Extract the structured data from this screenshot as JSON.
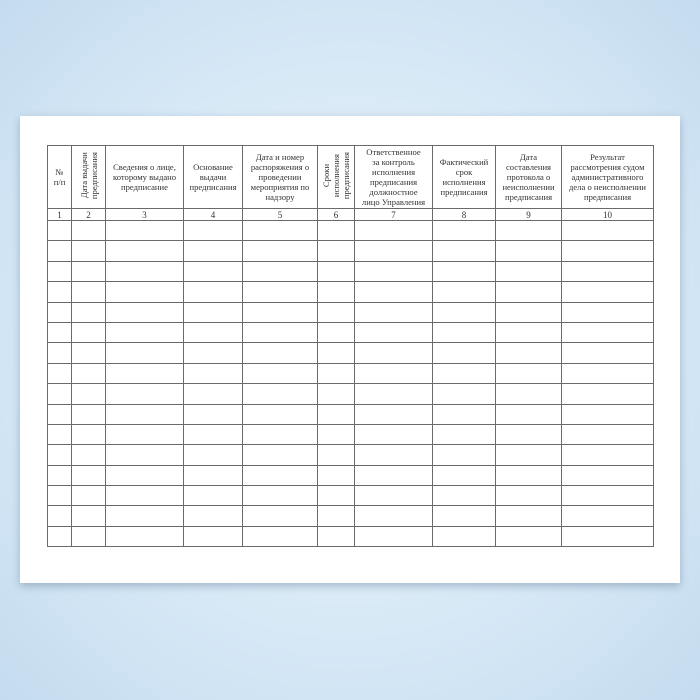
{
  "columns": [
    {
      "header": "№\nп/п",
      "number": "1",
      "vertical": false
    },
    {
      "header": "Дата выдачи\nпредписания",
      "number": "2",
      "vertical": true
    },
    {
      "header": "Сведения о лице,\nкоторому выдано\nпредписание",
      "number": "3",
      "vertical": false
    },
    {
      "header": "Основание\nвыдачи\nпредписания",
      "number": "4",
      "vertical": false
    },
    {
      "header": "Дата и номер\nраспоряжения о\nпроведении\nмероприятия по\nнадзору",
      "number": "5",
      "vertical": false
    },
    {
      "header": "Сроки\nисполнения\nпредписания",
      "number": "6",
      "vertical": true
    },
    {
      "header": "Ответственное\nза контроль\nисполнения\nпредписания\nдолжностное\nлицо Управления",
      "number": "7",
      "vertical": false
    },
    {
      "header": "Фактический\nсрок\nисполнения\nпредписания",
      "number": "8",
      "vertical": false
    },
    {
      "header": "Дата\nсоставления\nпротокола о\nнеисполнении\nпредписания",
      "number": "9",
      "vertical": false
    },
    {
      "header": "Результат\nрассмотрения судом\nадминистративного\nдела о неисполнении\nпредписания",
      "number": "10",
      "vertical": false
    }
  ],
  "empty_rows": 16
}
